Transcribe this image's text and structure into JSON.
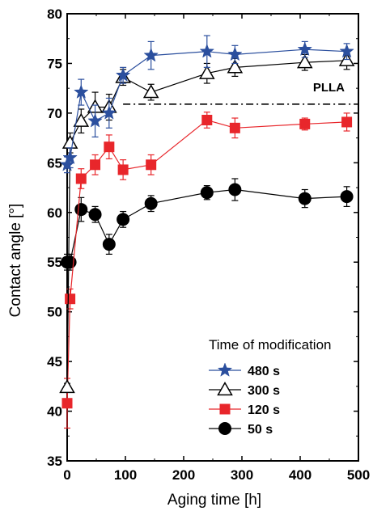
{
  "chart_data": {
    "type": "line",
    "title": "",
    "xlabel": "Aging time [h]",
    "ylabel": "Contact angle [°]",
    "xlim": [
      0,
      500
    ],
    "ylim": [
      35,
      80
    ],
    "x_ticks": [
      0,
      100,
      200,
      300,
      400,
      500
    ],
    "y_ticks": [
      35,
      40,
      45,
      50,
      55,
      60,
      65,
      70,
      75,
      80
    ],
    "grid": false,
    "reference_line": {
      "label": "PLLA",
      "y": 70.9,
      "style": "dash-dot"
    },
    "legend": {
      "title": "Time of modification",
      "placement": "bottom-right"
    },
    "series": [
      {
        "name": "480 s",
        "color": "#2b4f9e",
        "marker": "star",
        "x": [
          0,
          5,
          24,
          48,
          72,
          96,
          144,
          240,
          288,
          408,
          480
        ],
        "y": [
          64.8,
          65.5,
          72.1,
          69.2,
          70.0,
          73.8,
          75.8,
          76.2,
          75.9,
          76.4,
          76.2
        ],
        "err": [
          0.8,
          1.0,
          1.3,
          1.6,
          1.5,
          0.8,
          1.4,
          1.6,
          0.9,
          0.8,
          0.8
        ]
      },
      {
        "name": "300 s",
        "color": "#000000",
        "marker": "triangle-open",
        "x": [
          0,
          5,
          24,
          48,
          72,
          96,
          144,
          240,
          288,
          408,
          480
        ],
        "y": [
          42.4,
          67.0,
          69.2,
          70.6,
          70.6,
          73.6,
          72.1,
          74.0,
          74.6,
          75.1,
          75.3
        ],
        "err": [
          0.4,
          1.0,
          1.2,
          1.5,
          1.3,
          0.8,
          0.8,
          1.0,
          0.9,
          0.8,
          0.9
        ]
      },
      {
        "name": "120 s",
        "color": "#e8262b",
        "marker": "square",
        "x": [
          0,
          5,
          24,
          48,
          72,
          96,
          144,
          240,
          288,
          408,
          480
        ],
        "y": [
          40.8,
          51.3,
          63.4,
          64.8,
          66.6,
          64.3,
          64.8,
          69.3,
          68.5,
          68.9,
          69.1
        ],
        "err": [
          2.5,
          1.0,
          1.0,
          1.0,
          1.2,
          1.0,
          1.0,
          0.8,
          1.0,
          0.6,
          0.9
        ]
      },
      {
        "name": "50 s",
        "color": "#000000",
        "marker": "circle",
        "x": [
          0,
          5,
          24,
          48,
          72,
          96,
          144,
          240,
          288,
          408,
          480
        ],
        "y": [
          55.0,
          55.0,
          60.3,
          59.8,
          56.8,
          59.3,
          60.9,
          62.0,
          62.3,
          61.4,
          61.6
        ],
        "err": [
          0.8,
          0.8,
          1.2,
          0.8,
          1.0,
          0.8,
          0.8,
          0.7,
          1.1,
          0.9,
          1.0
        ]
      }
    ]
  }
}
